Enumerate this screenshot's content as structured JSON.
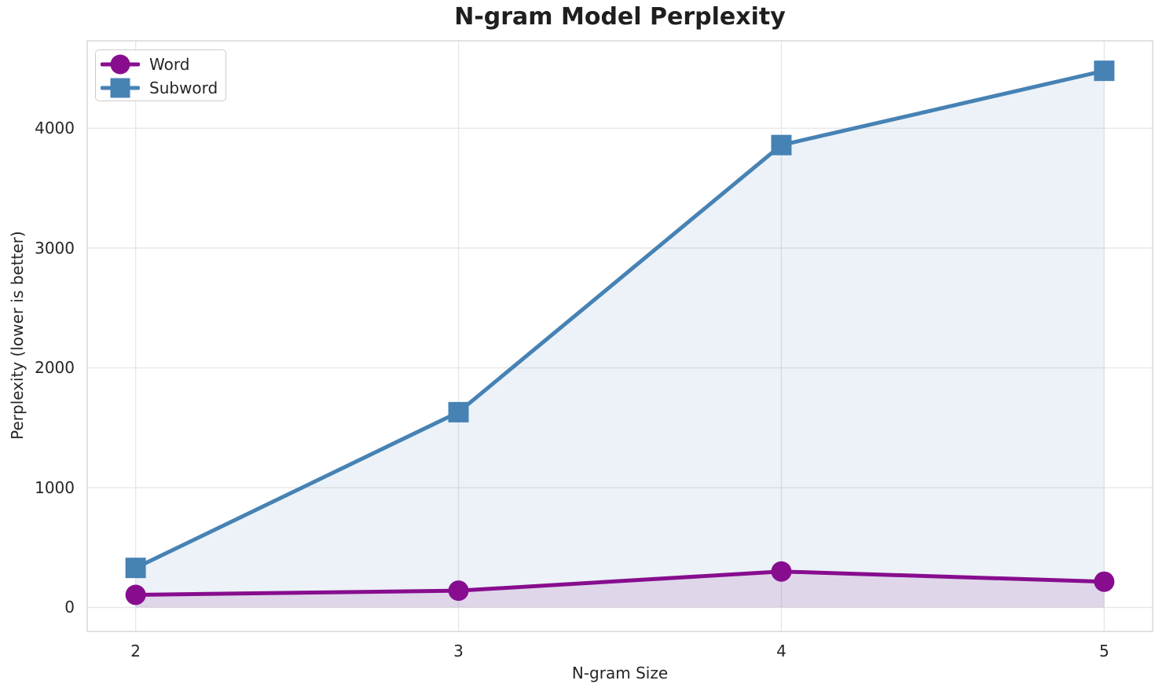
{
  "chart_data": {
    "type": "line",
    "title": "N-gram Model Perplexity",
    "xlabel": "N-gram Size",
    "ylabel": "Perplexity (lower is better)",
    "x": [
      2,
      3,
      4,
      5
    ],
    "series": [
      {
        "name": "Word",
        "color": "#870D8E",
        "marker": "circle",
        "values": [
          105,
          140,
          300,
          215
        ],
        "fill_opacity": 0.12
      },
      {
        "name": "Subword",
        "color": "#4682B4",
        "marker": "square",
        "values": [
          330,
          1630,
          3860,
          4480
        ],
        "fill_opacity": 0.1
      }
    ],
    "area_fill_to": 0,
    "xlim": [
      1.85,
      5.15
    ],
    "ylim": [
      -200,
      4730
    ],
    "xticks": [
      2,
      3,
      4,
      5
    ],
    "xtick_labels": [
      "2",
      "3",
      "4",
      "5"
    ],
    "yticks": [
      0,
      1000,
      2000,
      3000,
      4000
    ],
    "ytick_labels": [
      "0",
      "1000",
      "2000",
      "3000",
      "4000"
    ],
    "grid": true,
    "legend_position": "upper left",
    "line_width": 5,
    "marker_size": 26
  },
  "colors": {
    "grid": "#e7e7e7",
    "spine": "#d8d8d8",
    "text": "#262626"
  }
}
